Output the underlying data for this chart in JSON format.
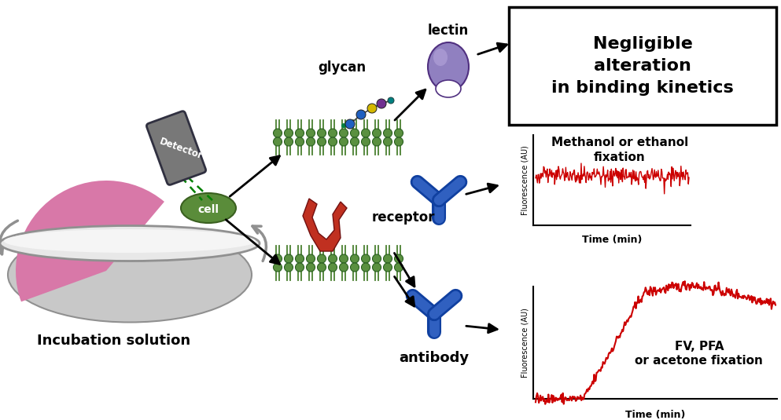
{
  "box1_text": "Negligible\nalteration\nin binding kinetics",
  "box2_label": "Methanol or ethanol\nfixation",
  "box3_label": "FV, PFA\nor acetone fixation",
  "ylabel": "Fluorescence (AU)",
  "xlabel": "Time (min)",
  "incubation_label": "Incubation solution",
  "glycan_label": "glycan",
  "lectin_label": "lectin",
  "receptor_label": "receptor",
  "antibody_label": "antibody",
  "cell_label": "cell",
  "detector_label": "Detector",
  "bg_color": "#ffffff",
  "plot_color": "#cc0000",
  "dish_gray": "#c8c8c8",
  "dish_rim": "#e0e0e0",
  "dish_edge": "#909090",
  "pink_color": "#d878a8",
  "cell_green": "#5a8c3a",
  "mem_green": "#4a8030",
  "mem_head": "#5a9040",
  "glycan_blue": "#2060c0",
  "glycan_yellow": "#d4b800",
  "glycan_purple": "#703090",
  "glycan_teal": "#008080",
  "lectin_purple": "#8878b8",
  "receptor_red": "#c03020",
  "antibody_blue": "#3060c0",
  "antibody_dark": "#1040a0"
}
